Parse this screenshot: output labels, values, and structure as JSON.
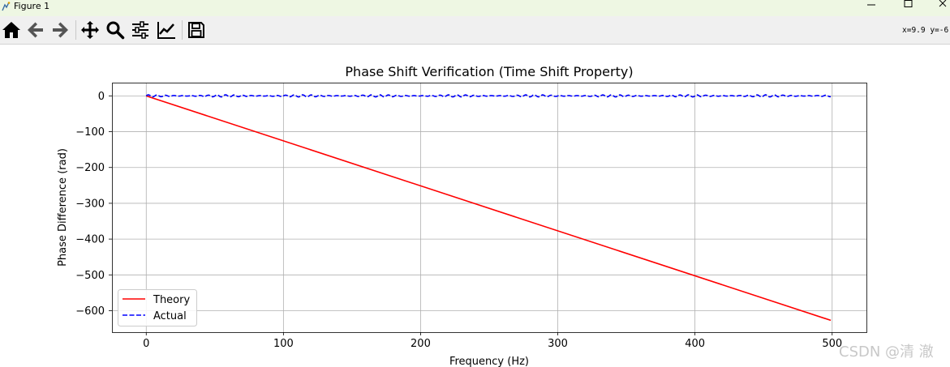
{
  "window": {
    "title": "Figure 1"
  },
  "toolbar": {
    "buttons": [
      {
        "name": "home-icon",
        "label": "Home"
      },
      {
        "name": "back-icon",
        "label": "Back"
      },
      {
        "name": "forward-icon",
        "label": "Forward"
      },
      {
        "name": "pan-icon",
        "label": "Pan"
      },
      {
        "name": "zoom-icon",
        "label": "Zoom"
      },
      {
        "name": "subplots-icon",
        "label": "Subplots"
      },
      {
        "name": "customize-icon",
        "label": "Customize"
      },
      {
        "name": "save-icon",
        "label": "Save"
      }
    ],
    "coords": "x=9.9 y=-6"
  },
  "chart_data": {
    "type": "line",
    "title": "Phase Shift Verification (Time Shift Property)",
    "xlabel": "Frequency (Hz)",
    "ylabel": "Phase Difference (rad)",
    "xlim": [
      -25,
      525
    ],
    "ylim": [
      -660,
      37
    ],
    "xticks": [
      0,
      100,
      200,
      300,
      400,
      500
    ],
    "yticks": [
      0,
      -100,
      -200,
      -300,
      -400,
      -500,
      -600
    ],
    "xtick_labels": [
      "0",
      "100",
      "200",
      "300",
      "400",
      "500"
    ],
    "ytick_labels": [
      "0",
      "−100",
      "−200",
      "−300",
      "−400",
      "−500",
      "−600"
    ],
    "grid": true,
    "legend_position": "lower-left",
    "series": [
      {
        "name": "Theory",
        "color": "#ff0000",
        "style": "solid",
        "x": [
          0,
          499
        ],
        "y": [
          0,
          -627
        ]
      },
      {
        "name": "Actual",
        "color": "#0000ff",
        "style": "dashed",
        "x_range": [
          0,
          499
        ],
        "approx_value": 0,
        "ripple_amplitude": 3,
        "ripple_period_hz": 6.25
      }
    ]
  },
  "watermark": "CSDN @清 澈"
}
